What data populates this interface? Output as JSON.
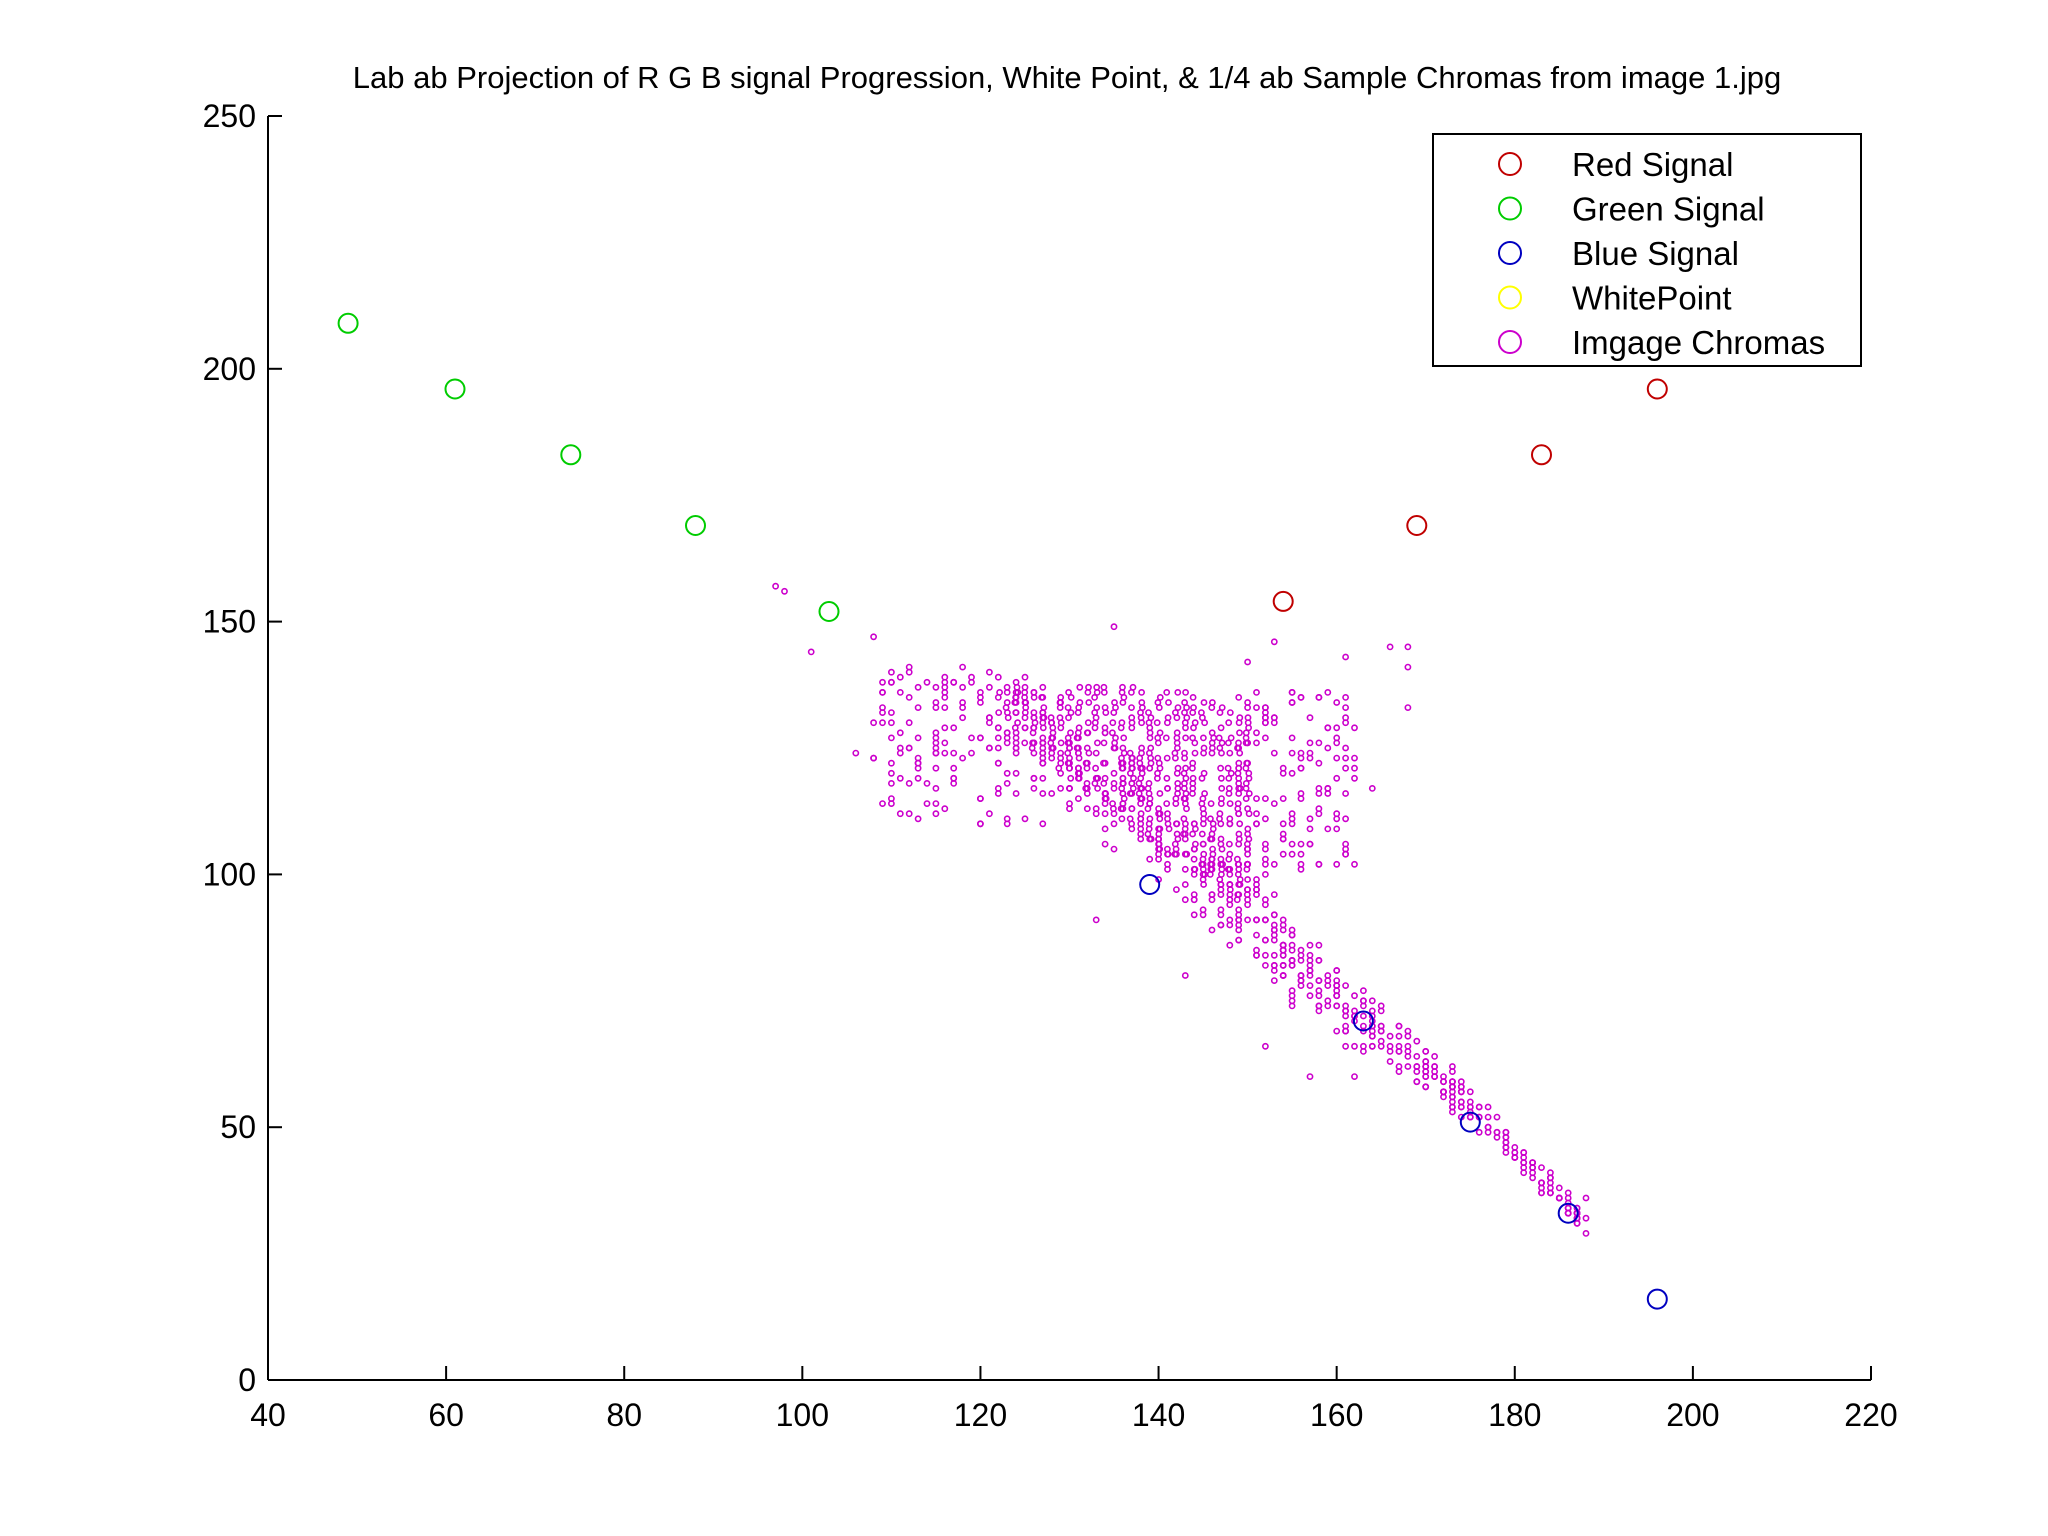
{
  "chart_data": {
    "type": "scatter",
    "title": "Lab ab Projection of R G B signal Progression, White Point, & 1/4 ab Sample Chromas from image 1.jpg",
    "xlabel": "",
    "ylabel": "",
    "xlim": [
      40,
      220
    ],
    "ylim": [
      0,
      250
    ],
    "x_ticks": [
      "40",
      "60",
      "80",
      "100",
      "120",
      "140",
      "160",
      "180",
      "200",
      "220"
    ],
    "y_ticks": [
      "0",
      "50",
      "100",
      "150",
      "200",
      "250"
    ],
    "grid": false,
    "legend_position": "top-right",
    "series": [
      {
        "name": "Red Signal",
        "color": "#c00000",
        "marker": "large-circle",
        "points": [
          [
            154,
            154
          ],
          [
            169,
            169
          ],
          [
            183,
            183
          ],
          [
            196,
            196
          ]
        ]
      },
      {
        "name": "Green Signal",
        "color": "#00cc00",
        "marker": "large-circle",
        "points": [
          [
            49,
            209
          ],
          [
            61,
            196
          ],
          [
            74,
            183
          ],
          [
            88,
            169
          ],
          [
            103,
            152
          ]
        ]
      },
      {
        "name": "Blue Signal",
        "color": "#0000c0",
        "marker": "large-circle",
        "points": [
          [
            139,
            98
          ],
          [
            163,
            71
          ],
          [
            175,
            51
          ],
          [
            186,
            33
          ],
          [
            196,
            16
          ]
        ]
      },
      {
        "name": "WhitePoint",
        "color": "#ffff00",
        "marker": "large-circle",
        "points": []
      },
      {
        "name": "Imgage Chromas",
        "color": "#cc00cc",
        "marker": "small-circle",
        "distribution": {
          "note_points": "scattered sample chromas concentrated along the diagonal band",
          "dense_core": {
            "x": [
              122,
              150
            ],
            "y": [
              95,
              138
            ]
          },
          "band": [
            [
              125,
              128
            ],
            [
              135,
              118
            ],
            [
              145,
              100
            ],
            [
              152,
              88
            ],
            [
              158,
              78
            ],
            [
              165,
              68
            ],
            [
              172,
              58
            ],
            [
              178,
              48
            ],
            [
              184,
              38
            ],
            [
              188,
              30
            ]
          ],
          "outliers": [
            [
              97,
              157
            ],
            [
              98,
              156
            ],
            [
              101,
              144
            ],
            [
              106,
              124
            ],
            [
              108,
              147
            ],
            [
              110,
              140
            ],
            [
              112,
              141
            ],
            [
              115,
              126
            ],
            [
              118,
              141
            ],
            [
              135,
              149
            ],
            [
              150,
              142
            ],
            [
              153,
              146
            ],
            [
              161,
              143
            ],
            [
              164,
              117
            ],
            [
              166,
              145
            ],
            [
              168,
              145
            ],
            [
              168,
              141
            ],
            [
              168,
              133
            ],
            [
              133,
              91
            ],
            [
              143,
              80
            ],
            [
              152,
              66
            ],
            [
              157,
              60
            ],
            [
              162,
              60
            ],
            [
              188,
              36
            ],
            [
              188,
              29
            ]
          ]
        }
      }
    ]
  }
}
